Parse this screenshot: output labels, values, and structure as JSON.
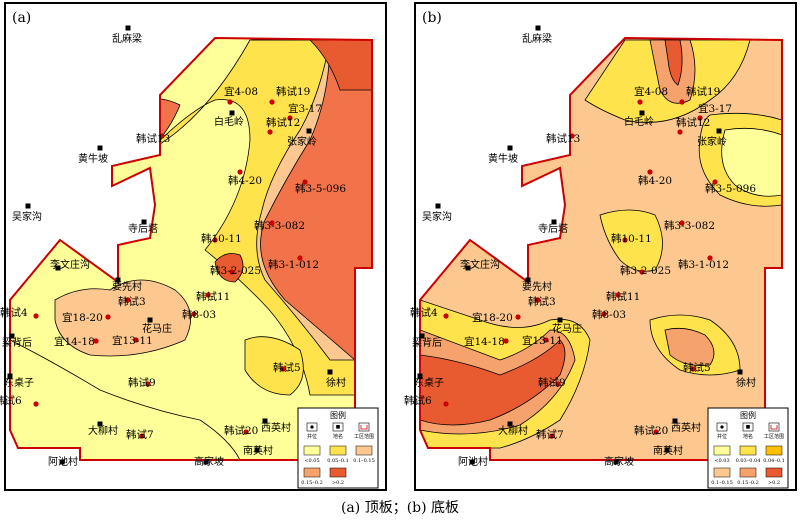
{
  "caption": "(a) 顶板；(b) 底板",
  "legend_title": "图例",
  "legend_symbols": [
    "井位",
    "地名",
    "工区范围"
  ],
  "colors": {
    "pale": "#ffff99",
    "yellow": "#ffe34d",
    "gold": "#ffc000",
    "peach": "#fcc890",
    "salmon": "#f6a26c",
    "orange": "#f2724a",
    "red_orange": "#e85a30",
    "boundary": "#cc0000",
    "well": "#cc0000"
  },
  "panels": [
    {
      "label": "(a)",
      "legend_classes": [
        "<0.05",
        "0.05–0.1",
        "0.1–0.15",
        "0.15–0.2",
        ">0.2"
      ],
      "places": [
        "乱麻梁",
        "黄牛坡",
        "吴家沟",
        "寺后塔",
        "李文庄沟",
        "要先村",
        "花马庄",
        "梁背后",
        "东桌子",
        "大柳村",
        "阿池村",
        "高家坡",
        "南英村",
        "西英村",
        "徐村",
        "张家岭",
        "白毛岭"
      ],
      "wells": [
        "宜4-08",
        "韩试19",
        "宜3-17",
        "韩试12",
        "韩试13",
        "韩4-20",
        "韩3-5-096",
        "韩3-3-082",
        "韩10-11",
        "韩3-1-012",
        "韩3-2-025",
        "韩试11",
        "韩试3",
        "韩试4",
        "宜18-20",
        "韩8-03",
        "宜14-18",
        "宜13-11",
        "韩试5",
        "韩试6",
        "韩试9",
        "韩试7",
        "韩试20"
      ]
    },
    {
      "label": "(b)",
      "legend_classes": [
        "<0.03",
        "0.03–0.04",
        "0.04–0.1",
        "0.1–0.15",
        "0.15–0.2",
        ">0.2"
      ],
      "places": [
        "乱麻梁",
        "黄牛坡",
        "吴家沟",
        "寺后塔",
        "李文庄沟",
        "要先村",
        "花马庄",
        "梁背后",
        "东桌子",
        "大柳村",
        "阿池村",
        "高家坡",
        "南英村",
        "西英村",
        "徐村",
        "张家岭",
        "白毛岭"
      ],
      "wells": [
        "宜4-08",
        "韩试19",
        "宜3-17",
        "韩试12",
        "韩试13",
        "韩4-20",
        "韩3-5-096",
        "韩3-3-082",
        "韩10-11",
        "韩3-1-012",
        "韩3-2-025",
        "韩试11",
        "韩试3",
        "韩试4",
        "宜18-20",
        "韩8-03",
        "宜14-18",
        "宜13-11",
        "韩试5",
        "韩试6",
        "韩试9",
        "韩试7",
        "韩试20"
      ]
    }
  ]
}
